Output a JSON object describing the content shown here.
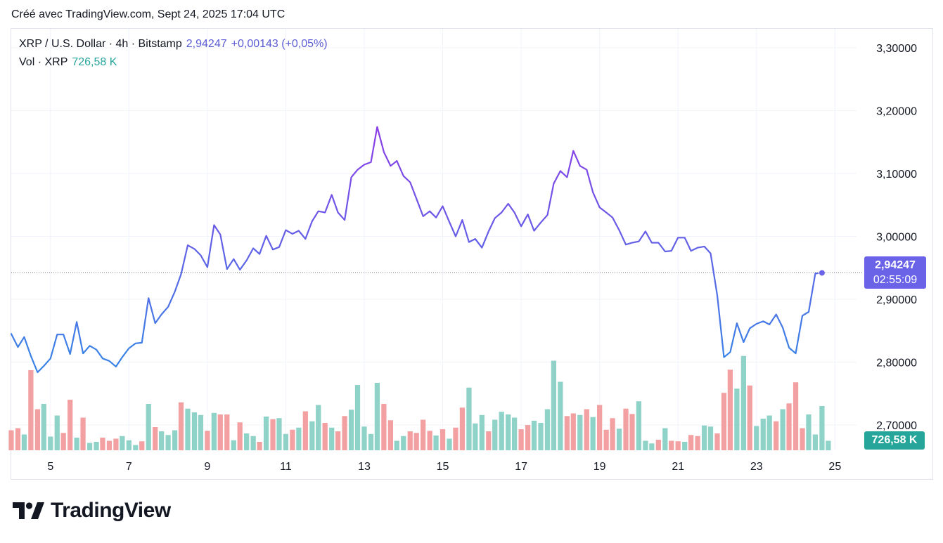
{
  "header": {
    "created_text": "Créé avec TradingView.com, Sept 24, 2025 17:04 UTC"
  },
  "legend": {
    "symbol_text": "XRP / U.S. Dollar · 4h · Bitstamp",
    "price": "2,94247",
    "change": "+0,00143 (+0,05%)",
    "volume_label": "Vol · XRP",
    "volume_value": "726,58 K"
  },
  "badges": {
    "price": "2,94247",
    "countdown": "02:55:09",
    "volume": "726,58 K"
  },
  "brand": {
    "name": "TradingView"
  },
  "colors": {
    "line_low": "#3b82e6",
    "line_high": "#8a3ee8",
    "vol_up": "#8fd3c8",
    "vol_down": "#f3a0a2",
    "grid": "#f0f3fa",
    "accent_badge": "#6a63e8",
    "volume_badge": "#26a69a"
  },
  "chart_data": {
    "type": "line",
    "title": "XRP / U.S. Dollar · 4h · Bitstamp",
    "ylim": [
      2.66,
      3.33
    ],
    "y_ticks": [
      {
        "value": 3.3,
        "label": "3,30000"
      },
      {
        "value": 3.2,
        "label": "3,20000"
      },
      {
        "value": 3.1,
        "label": "3,10000"
      },
      {
        "value": 3.0,
        "label": "3,00000"
      },
      {
        "value": 2.9,
        "label": "2,90000"
      },
      {
        "value": 2.8,
        "label": "2,80000"
      },
      {
        "value": 2.7,
        "label": "2,70000"
      }
    ],
    "xlim": [
      4.0,
      25.55
    ],
    "x_ticks": [
      {
        "value": 5,
        "label": "5"
      },
      {
        "value": 7,
        "label": "7"
      },
      {
        "value": 9,
        "label": "9"
      },
      {
        "value": 11,
        "label": "11"
      },
      {
        "value": 13,
        "label": "13"
      },
      {
        "value": 15,
        "label": "15"
      },
      {
        "value": 17,
        "label": "17"
      },
      {
        "value": 19,
        "label": "19"
      },
      {
        "value": 21,
        "label": "21"
      },
      {
        "value": 23,
        "label": "23"
      },
      {
        "value": 25,
        "label": "25"
      }
    ],
    "last_price": 2.94247,
    "price": [
      [
        4.0,
        2.845
      ],
      [
        4.17,
        2.824
      ],
      [
        4.33,
        2.84
      ],
      [
        4.5,
        2.81
      ],
      [
        4.67,
        2.784
      ],
      [
        4.83,
        2.794
      ],
      [
        5.0,
        2.806
      ],
      [
        5.17,
        2.844
      ],
      [
        5.33,
        2.844
      ],
      [
        5.5,
        2.813
      ],
      [
        5.67,
        2.864
      ],
      [
        5.83,
        2.814
      ],
      [
        6.0,
        2.826
      ],
      [
        6.17,
        2.82
      ],
      [
        6.33,
        2.806
      ],
      [
        6.5,
        2.802
      ],
      [
        6.67,
        2.793
      ],
      [
        6.83,
        2.808
      ],
      [
        7.0,
        2.822
      ],
      [
        7.17,
        2.83
      ],
      [
        7.33,
        2.831
      ],
      [
        7.5,
        2.902
      ],
      [
        7.67,
        2.862
      ],
      [
        7.83,
        2.876
      ],
      [
        8.0,
        2.888
      ],
      [
        8.17,
        2.912
      ],
      [
        8.33,
        2.94
      ],
      [
        8.5,
        2.986
      ],
      [
        8.67,
        2.98
      ],
      [
        8.83,
        2.97
      ],
      [
        9.0,
        2.951
      ],
      [
        9.17,
        3.018
      ],
      [
        9.33,
        3.003
      ],
      [
        9.5,
        2.948
      ],
      [
        9.67,
        2.964
      ],
      [
        9.83,
        2.947
      ],
      [
        10.0,
        2.962
      ],
      [
        10.17,
        2.981
      ],
      [
        10.33,
        2.972
      ],
      [
        10.5,
        3.001
      ],
      [
        10.67,
        2.979
      ],
      [
        10.83,
        2.983
      ],
      [
        11.0,
        3.01
      ],
      [
        11.17,
        3.004
      ],
      [
        11.33,
        3.009
      ],
      [
        11.5,
        2.996
      ],
      [
        11.67,
        3.024
      ],
      [
        11.83,
        3.04
      ],
      [
        12.0,
        3.038
      ],
      [
        12.17,
        3.066
      ],
      [
        12.33,
        3.038
      ],
      [
        12.5,
        3.026
      ],
      [
        12.67,
        3.094
      ],
      [
        12.83,
        3.106
      ],
      [
        13.0,
        3.114
      ],
      [
        13.17,
        3.118
      ],
      [
        13.33,
        3.174
      ],
      [
        13.5,
        3.134
      ],
      [
        13.67,
        3.112
      ],
      [
        13.83,
        3.12
      ],
      [
        14.0,
        3.096
      ],
      [
        14.17,
        3.086
      ],
      [
        14.33,
        3.06
      ],
      [
        14.5,
        3.032
      ],
      [
        14.67,
        3.04
      ],
      [
        14.83,
        3.03
      ],
      [
        15.0,
        3.048
      ],
      [
        15.17,
        3.023
      ],
      [
        15.33,
        3.0
      ],
      [
        15.5,
        3.026
      ],
      [
        15.67,
        2.991
      ],
      [
        15.83,
        2.996
      ],
      [
        16.0,
        2.982
      ],
      [
        16.17,
        3.008
      ],
      [
        16.33,
        3.029
      ],
      [
        16.5,
        3.038
      ],
      [
        16.67,
        3.052
      ],
      [
        16.83,
        3.038
      ],
      [
        17.0,
        3.016
      ],
      [
        17.17,
        3.035
      ],
      [
        17.33,
        3.009
      ],
      [
        17.5,
        3.022
      ],
      [
        17.67,
        3.034
      ],
      [
        17.83,
        3.084
      ],
      [
        18.0,
        3.104
      ],
      [
        18.17,
        3.094
      ],
      [
        18.33,
        3.136
      ],
      [
        18.5,
        3.112
      ],
      [
        18.67,
        3.106
      ],
      [
        18.83,
        3.07
      ],
      [
        19.0,
        3.046
      ],
      [
        19.17,
        3.038
      ],
      [
        19.33,
        3.03
      ],
      [
        19.5,
        3.01
      ],
      [
        19.67,
        2.987
      ],
      [
        19.83,
        2.99
      ],
      [
        20.0,
        2.992
      ],
      [
        20.17,
        3.008
      ],
      [
        20.33,
        2.99
      ],
      [
        20.5,
        2.99
      ],
      [
        20.67,
        2.976
      ],
      [
        20.83,
        2.977
      ],
      [
        21.0,
        2.998
      ],
      [
        21.17,
        2.998
      ],
      [
        21.33,
        2.977
      ],
      [
        21.5,
        2.982
      ],
      [
        21.67,
        2.984
      ],
      [
        21.83,
        2.973
      ],
      [
        22.0,
        2.906
      ],
      [
        22.17,
        2.808
      ],
      [
        22.33,
        2.816
      ],
      [
        22.5,
        2.862
      ],
      [
        22.67,
        2.832
      ],
      [
        22.83,
        2.854
      ],
      [
        23.0,
        2.861
      ],
      [
        23.17,
        2.865
      ],
      [
        23.33,
        2.86
      ],
      [
        23.5,
        2.876
      ],
      [
        23.67,
        2.855
      ],
      [
        23.83,
        2.823
      ],
      [
        24.0,
        2.814
      ],
      [
        24.17,
        2.874
      ],
      [
        24.33,
        2.88
      ],
      [
        24.5,
        2.941
      ],
      [
        24.67,
        2.942
      ]
    ],
    "volume": [
      {
        "x": 4.0,
        "v": 0.38,
        "d": "down"
      },
      {
        "x": 4.17,
        "v": 0.42,
        "d": "down"
      },
      {
        "x": 4.33,
        "v": 0.3,
        "d": "up"
      },
      {
        "x": 4.5,
        "v": 1.52,
        "d": "down"
      },
      {
        "x": 4.67,
        "v": 0.78,
        "d": "down"
      },
      {
        "x": 4.83,
        "v": 0.88,
        "d": "up"
      },
      {
        "x": 5.0,
        "v": 0.26,
        "d": "up"
      },
      {
        "x": 5.17,
        "v": 0.66,
        "d": "up"
      },
      {
        "x": 5.33,
        "v": 0.33,
        "d": "down"
      },
      {
        "x": 5.5,
        "v": 0.96,
        "d": "down"
      },
      {
        "x": 5.67,
        "v": 0.24,
        "d": "up"
      },
      {
        "x": 5.83,
        "v": 0.62,
        "d": "down"
      },
      {
        "x": 6.0,
        "v": 0.14,
        "d": "up"
      },
      {
        "x": 6.17,
        "v": 0.16,
        "d": "up"
      },
      {
        "x": 6.33,
        "v": 0.24,
        "d": "down"
      },
      {
        "x": 6.5,
        "v": 0.18,
        "d": "down"
      },
      {
        "x": 6.67,
        "v": 0.22,
        "d": "down"
      },
      {
        "x": 6.83,
        "v": 0.27,
        "d": "up"
      },
      {
        "x": 7.0,
        "v": 0.19,
        "d": "up"
      },
      {
        "x": 7.17,
        "v": 0.1,
        "d": "up"
      },
      {
        "x": 7.33,
        "v": 0.17,
        "d": "down"
      },
      {
        "x": 7.5,
        "v": 0.88,
        "d": "up"
      },
      {
        "x": 7.67,
        "v": 0.44,
        "d": "down"
      },
      {
        "x": 7.83,
        "v": 0.36,
        "d": "up"
      },
      {
        "x": 8.0,
        "v": 0.29,
        "d": "up"
      },
      {
        "x": 8.17,
        "v": 0.38,
        "d": "up"
      },
      {
        "x": 8.33,
        "v": 0.91,
        "d": "down"
      },
      {
        "x": 8.5,
        "v": 0.79,
        "d": "up"
      },
      {
        "x": 8.67,
        "v": 0.72,
        "d": "up"
      },
      {
        "x": 8.83,
        "v": 0.67,
        "d": "up"
      },
      {
        "x": 9.0,
        "v": 0.37,
        "d": "down"
      },
      {
        "x": 9.17,
        "v": 0.71,
        "d": "up"
      },
      {
        "x": 9.33,
        "v": 0.68,
        "d": "down"
      },
      {
        "x": 9.5,
        "v": 0.68,
        "d": "down"
      },
      {
        "x": 9.67,
        "v": 0.19,
        "d": "up"
      },
      {
        "x": 9.83,
        "v": 0.53,
        "d": "down"
      },
      {
        "x": 10.0,
        "v": 0.32,
        "d": "up"
      },
      {
        "x": 10.17,
        "v": 0.27,
        "d": "up"
      },
      {
        "x": 10.33,
        "v": 0.16,
        "d": "down"
      },
      {
        "x": 10.5,
        "v": 0.64,
        "d": "up"
      },
      {
        "x": 10.67,
        "v": 0.59,
        "d": "down"
      },
      {
        "x": 10.83,
        "v": 0.61,
        "d": "up"
      },
      {
        "x": 11.0,
        "v": 0.31,
        "d": "up"
      },
      {
        "x": 11.17,
        "v": 0.39,
        "d": "down"
      },
      {
        "x": 11.33,
        "v": 0.43,
        "d": "up"
      },
      {
        "x": 11.5,
        "v": 0.74,
        "d": "down"
      },
      {
        "x": 11.67,
        "v": 0.55,
        "d": "up"
      },
      {
        "x": 11.83,
        "v": 0.86,
        "d": "up"
      },
      {
        "x": 12.0,
        "v": 0.52,
        "d": "down"
      },
      {
        "x": 12.17,
        "v": 0.43,
        "d": "up"
      },
      {
        "x": 12.33,
        "v": 0.36,
        "d": "down"
      },
      {
        "x": 12.5,
        "v": 0.65,
        "d": "down"
      },
      {
        "x": 12.67,
        "v": 0.77,
        "d": "up"
      },
      {
        "x": 12.83,
        "v": 1.24,
        "d": "up"
      },
      {
        "x": 13.0,
        "v": 0.45,
        "d": "up"
      },
      {
        "x": 13.17,
        "v": 0.31,
        "d": "up"
      },
      {
        "x": 13.33,
        "v": 1.28,
        "d": "up"
      },
      {
        "x": 13.5,
        "v": 0.88,
        "d": "down"
      },
      {
        "x": 13.67,
        "v": 0.57,
        "d": "down"
      },
      {
        "x": 13.83,
        "v": 0.18,
        "d": "up"
      },
      {
        "x": 14.0,
        "v": 0.27,
        "d": "up"
      },
      {
        "x": 14.17,
        "v": 0.36,
        "d": "down"
      },
      {
        "x": 14.33,
        "v": 0.33,
        "d": "down"
      },
      {
        "x": 14.5,
        "v": 0.58,
        "d": "down"
      },
      {
        "x": 14.67,
        "v": 0.37,
        "d": "down"
      },
      {
        "x": 14.83,
        "v": 0.28,
        "d": "up"
      },
      {
        "x": 15.0,
        "v": 0.4,
        "d": "down"
      },
      {
        "x": 15.17,
        "v": 0.22,
        "d": "up"
      },
      {
        "x": 15.33,
        "v": 0.43,
        "d": "down"
      },
      {
        "x": 15.5,
        "v": 0.81,
        "d": "down"
      },
      {
        "x": 15.67,
        "v": 1.19,
        "d": "up"
      },
      {
        "x": 15.83,
        "v": 0.51,
        "d": "up"
      },
      {
        "x": 16.0,
        "v": 0.67,
        "d": "up"
      },
      {
        "x": 16.17,
        "v": 0.36,
        "d": "down"
      },
      {
        "x": 16.33,
        "v": 0.58,
        "d": "up"
      },
      {
        "x": 16.5,
        "v": 0.73,
        "d": "up"
      },
      {
        "x": 16.67,
        "v": 0.68,
        "d": "up"
      },
      {
        "x": 16.83,
        "v": 0.62,
        "d": "up"
      },
      {
        "x": 17.0,
        "v": 0.4,
        "d": "down"
      },
      {
        "x": 17.17,
        "v": 0.48,
        "d": "down"
      },
      {
        "x": 17.33,
        "v": 0.56,
        "d": "up"
      },
      {
        "x": 17.5,
        "v": 0.52,
        "d": "up"
      },
      {
        "x": 17.67,
        "v": 0.78,
        "d": "up"
      },
      {
        "x": 17.83,
        "v": 1.7,
        "d": "up"
      },
      {
        "x": 18.0,
        "v": 1.3,
        "d": "up"
      },
      {
        "x": 18.17,
        "v": 0.65,
        "d": "down"
      },
      {
        "x": 18.33,
        "v": 0.7,
        "d": "down"
      },
      {
        "x": 18.5,
        "v": 0.67,
        "d": "up"
      },
      {
        "x": 18.67,
        "v": 0.78,
        "d": "down"
      },
      {
        "x": 18.83,
        "v": 0.63,
        "d": "up"
      },
      {
        "x": 19.0,
        "v": 0.86,
        "d": "down"
      },
      {
        "x": 19.17,
        "v": 0.39,
        "d": "down"
      },
      {
        "x": 19.33,
        "v": 0.61,
        "d": "down"
      },
      {
        "x": 19.5,
        "v": 0.41,
        "d": "up"
      },
      {
        "x": 19.67,
        "v": 0.79,
        "d": "down"
      },
      {
        "x": 19.83,
        "v": 0.69,
        "d": "down"
      },
      {
        "x": 20.0,
        "v": 0.93,
        "d": "up"
      },
      {
        "x": 20.17,
        "v": 0.18,
        "d": "up"
      },
      {
        "x": 20.33,
        "v": 0.13,
        "d": "up"
      },
      {
        "x": 20.5,
        "v": 0.2,
        "d": "down"
      },
      {
        "x": 20.67,
        "v": 0.42,
        "d": "up"
      },
      {
        "x": 20.83,
        "v": 0.18,
        "d": "down"
      },
      {
        "x": 21.0,
        "v": 0.17,
        "d": "down"
      },
      {
        "x": 21.17,
        "v": 0.16,
        "d": "up"
      },
      {
        "x": 21.33,
        "v": 0.29,
        "d": "down"
      },
      {
        "x": 21.5,
        "v": 0.27,
        "d": "down"
      },
      {
        "x": 21.67,
        "v": 0.47,
        "d": "up"
      },
      {
        "x": 21.83,
        "v": 0.45,
        "d": "up"
      },
      {
        "x": 22.0,
        "v": 0.32,
        "d": "down"
      },
      {
        "x": 22.17,
        "v": 1.09,
        "d": "down"
      },
      {
        "x": 22.33,
        "v": 1.53,
        "d": "down"
      },
      {
        "x": 22.5,
        "v": 1.17,
        "d": "up"
      },
      {
        "x": 22.67,
        "v": 1.79,
        "d": "up"
      },
      {
        "x": 22.83,
        "v": 1.23,
        "d": "down"
      },
      {
        "x": 23.0,
        "v": 0.46,
        "d": "up"
      },
      {
        "x": 23.17,
        "v": 0.6,
        "d": "up"
      },
      {
        "x": 23.33,
        "v": 0.66,
        "d": "up"
      },
      {
        "x": 23.5,
        "v": 0.55,
        "d": "down"
      },
      {
        "x": 23.67,
        "v": 0.78,
        "d": "up"
      },
      {
        "x": 23.83,
        "v": 0.89,
        "d": "down"
      },
      {
        "x": 24.0,
        "v": 1.29,
        "d": "down"
      },
      {
        "x": 24.17,
        "v": 0.42,
        "d": "down"
      },
      {
        "x": 24.33,
        "v": 0.68,
        "d": "up"
      },
      {
        "x": 24.5,
        "v": 0.3,
        "d": "up"
      },
      {
        "x": 24.67,
        "v": 0.84,
        "d": "up"
      },
      {
        "x": 24.83,
        "v": 0.18,
        "d": "up"
      }
    ],
    "volume_max": 2.0
  }
}
